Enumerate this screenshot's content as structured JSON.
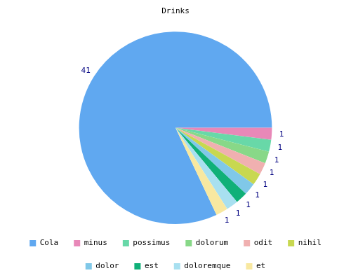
{
  "chart_data": {
    "type": "pie",
    "title": "Drinks",
    "categories": [
      "Cola",
      "minus",
      "possimus",
      "dolorum",
      "odit",
      "nihil",
      "dolor",
      "est",
      "doloremque",
      "et"
    ],
    "values": [
      41,
      1,
      1,
      1,
      1,
      1,
      1,
      1,
      1,
      1
    ],
    "colors": [
      "#60a8f0",
      "#e888b8",
      "#68d8a8",
      "#88d888",
      "#f0b0b0",
      "#c8d850",
      "#80c8e8",
      "#10b078",
      "#a8e0f0",
      "#f8e8a0"
    ],
    "data_labels": true,
    "legend": "bottom"
  }
}
